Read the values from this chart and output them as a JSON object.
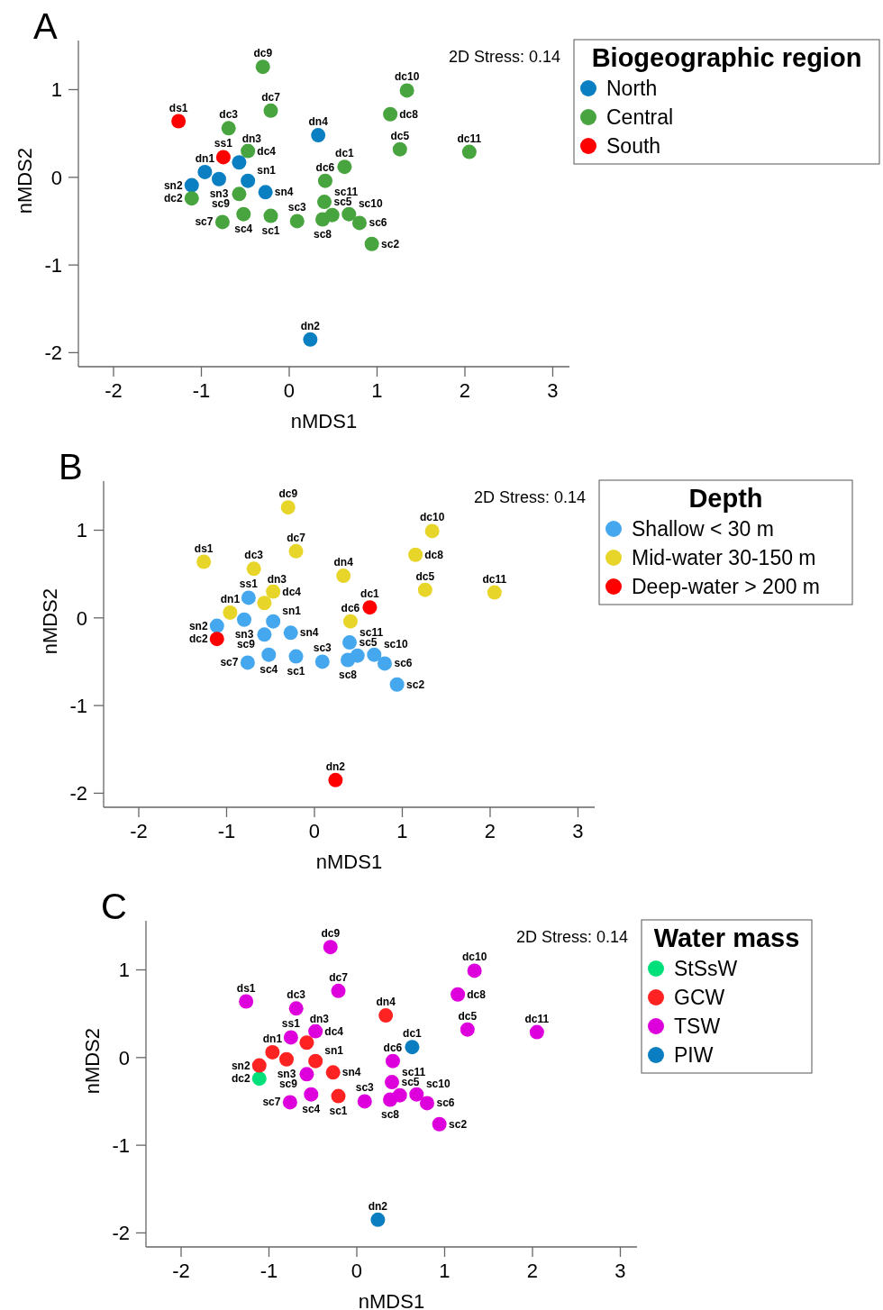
{
  "chart_data": [
    {
      "type": "scatter",
      "title": "A",
      "xlabel": "nMDS1",
      "ylabel": "nMDS2",
      "legend_title": "Biogeographic region",
      "legend": "right",
      "marker": "circle",
      "xlim": [
        -2.4,
        3.19
      ],
      "ylim": [
        -2.16,
        1.56
      ],
      "xticks": [
        -2,
        -1,
        0,
        1,
        2,
        3
      ],
      "yticks": [
        -2,
        -1,
        0,
        1
      ],
      "series": [
        {
          "name": "North",
          "color": "#0a7fc2",
          "x": [
            -0.96,
            0.24,
            -0.57,
            0.33,
            -0.47,
            -1.11,
            -0.8,
            -0.27
          ],
          "values": [
            0.06,
            -1.85,
            0.17,
            0.48,
            -0.04,
            -0.09,
            -0.02,
            -0.17
          ]
        },
        {
          "name": "Central",
          "color": "#47a43e",
          "x": [
            0.63,
            -1.11,
            -0.69,
            -0.47,
            1.26,
            0.41,
            -0.21,
            1.15,
            -0.3,
            1.34,
            2.05,
            -0.21,
            0.94,
            0.09,
            -0.52,
            0.4,
            0.8,
            -0.76,
            0.38,
            -0.57,
            0.68,
            0.49
          ],
          "values": [
            0.12,
            -0.24,
            0.56,
            0.3,
            0.32,
            -0.04,
            0.76,
            0.72,
            1.26,
            0.99,
            0.29,
            -0.44,
            -0.76,
            -0.5,
            -0.42,
            -0.28,
            -0.52,
            -0.51,
            -0.48,
            -0.19,
            -0.42,
            -0.43
          ]
        },
        {
          "name": "South",
          "color": "#ff0000",
          "x": [
            -1.26,
            -0.75
          ],
          "values": [
            0.64,
            0.23
          ]
        }
      ],
      "annotations": [
        "2D Stress: 0.14",
        {
          "text": "ds1",
          "x": -1.26,
          "y": 0.64
        },
        {
          "text": "ss1",
          "x": -0.75,
          "y": 0.23
        },
        {
          "text": "dn1",
          "x": -0.96,
          "y": 0.06
        },
        {
          "text": "dn2",
          "x": 0.24,
          "y": -1.85
        },
        {
          "text": "dn3",
          "x": -0.57,
          "y": 0.17
        },
        {
          "text": "dn4",
          "x": 0.33,
          "y": 0.48
        },
        {
          "text": "sn1",
          "x": -0.47,
          "y": -0.04
        },
        {
          "text": "sn2",
          "x": -1.11,
          "y": -0.09
        },
        {
          "text": "sn3",
          "x": -0.8,
          "y": -0.02
        },
        {
          "text": "sn4",
          "x": -0.27,
          "y": -0.17
        },
        {
          "text": "dc1",
          "x": 0.63,
          "y": 0.12
        },
        {
          "text": "dc2",
          "x": -1.11,
          "y": -0.24
        },
        {
          "text": "dc3",
          "x": -0.69,
          "y": 0.56
        },
        {
          "text": "dc4",
          "x": -0.47,
          "y": 0.3
        },
        {
          "text": "dc5",
          "x": 1.26,
          "y": 0.32
        },
        {
          "text": "dc6",
          "x": 0.41,
          "y": -0.04
        },
        {
          "text": "dc7",
          "x": -0.21,
          "y": 0.76
        },
        {
          "text": "dc8",
          "x": 1.15,
          "y": 0.72
        },
        {
          "text": "dc9",
          "x": -0.3,
          "y": 1.26
        },
        {
          "text": "dc10",
          "x": 1.34,
          "y": 0.99
        },
        {
          "text": "dc11",
          "x": 2.05,
          "y": 0.29
        },
        {
          "text": "sc1",
          "x": -0.21,
          "y": -0.44
        },
        {
          "text": "sc2",
          "x": 0.94,
          "y": -0.76
        },
        {
          "text": "sc3",
          "x": 0.09,
          "y": -0.5
        },
        {
          "text": "sc4",
          "x": -0.52,
          "y": -0.42
        },
        {
          "text": "sc5",
          "x": 0.4,
          "y": -0.28
        },
        {
          "text": "sc6",
          "x": 0.8,
          "y": -0.52
        },
        {
          "text": "sc7",
          "x": -0.76,
          "y": -0.51
        },
        {
          "text": "sc8",
          "x": 0.38,
          "y": -0.48
        },
        {
          "text": "sc9",
          "x": -0.57,
          "y": -0.19
        },
        {
          "text": "sc10",
          "x": 0.68,
          "y": -0.42
        },
        {
          "text": "sc11",
          "x": 0.49,
          "y": -0.43
        }
      ]
    },
    {
      "type": "scatter",
      "title": "B",
      "xlabel": "nMDS1",
      "ylabel": "nMDS2",
      "legend_title": "Depth",
      "legend": "right",
      "marker": "circle",
      "xlim": [
        -2.4,
        3.19
      ],
      "ylim": [
        -2.16,
        1.56
      ],
      "xticks": [
        -2,
        -1,
        0,
        1,
        2,
        3
      ],
      "yticks": [
        -2,
        -1,
        0,
        1
      ],
      "series": [
        {
          "name": "Shallow < 30 m",
          "color": "#45a8ee",
          "x": [
            -0.75,
            -0.47,
            -1.11,
            -0.8,
            -0.27,
            -0.21,
            0.94,
            0.09,
            -0.52,
            0.4,
            0.8,
            -0.76,
            0.38,
            -0.57,
            0.68,
            0.49
          ],
          "values": [
            0.23,
            -0.04,
            -0.09,
            -0.02,
            -0.17,
            -0.44,
            -0.76,
            -0.5,
            -0.42,
            -0.28,
            -0.52,
            -0.51,
            -0.48,
            -0.19,
            -0.42,
            -0.43
          ]
        },
        {
          "name": "Mid-water 30-150 m",
          "color": "#e8d52a",
          "x": [
            -1.26,
            -0.96,
            -0.57,
            0.33,
            -0.69,
            -0.47,
            1.26,
            0.41,
            -0.21,
            1.15,
            -0.3,
            1.34,
            2.05
          ],
          "values": [
            0.64,
            0.06,
            0.17,
            0.48,
            0.56,
            0.3,
            0.32,
            -0.04,
            0.76,
            0.72,
            1.26,
            0.99,
            0.29
          ]
        },
        {
          "name": "Deep-water > 200 m",
          "color": "#ff0000",
          "x": [
            0.63,
            -1.11,
            0.24
          ],
          "values": [
            0.12,
            -0.24,
            -1.85
          ]
        }
      ],
      "annotations": [
        "2D Stress: 0.14",
        {
          "text": "ds1",
          "x": -1.26,
          "y": 0.64
        },
        {
          "text": "ss1",
          "x": -0.75,
          "y": 0.23
        },
        {
          "text": "dn1",
          "x": -0.96,
          "y": 0.06
        },
        {
          "text": "dn2",
          "x": 0.24,
          "y": -1.85
        },
        {
          "text": "dn3",
          "x": -0.57,
          "y": 0.17
        },
        {
          "text": "dn4",
          "x": 0.33,
          "y": 0.48
        },
        {
          "text": "sn1",
          "x": -0.47,
          "y": -0.04
        },
        {
          "text": "sn2",
          "x": -1.11,
          "y": -0.09
        },
        {
          "text": "sn3",
          "x": -0.8,
          "y": -0.02
        },
        {
          "text": "sn4",
          "x": -0.27,
          "y": -0.17
        },
        {
          "text": "dc1",
          "x": 0.63,
          "y": 0.12
        },
        {
          "text": "dc2",
          "x": -1.11,
          "y": -0.24
        },
        {
          "text": "dc3",
          "x": -0.69,
          "y": 0.56
        },
        {
          "text": "dc4",
          "x": -0.47,
          "y": 0.3
        },
        {
          "text": "dc5",
          "x": 1.26,
          "y": 0.32
        },
        {
          "text": "dc6",
          "x": 0.41,
          "y": -0.04
        },
        {
          "text": "dc7",
          "x": -0.21,
          "y": 0.76
        },
        {
          "text": "dc8",
          "x": 1.15,
          "y": 0.72
        },
        {
          "text": "dc9",
          "x": -0.3,
          "y": 1.26
        },
        {
          "text": "dc10",
          "x": 1.34,
          "y": 0.99
        },
        {
          "text": "dc11",
          "x": 2.05,
          "y": 0.29
        },
        {
          "text": "sc1",
          "x": -0.21,
          "y": -0.44
        },
        {
          "text": "sc2",
          "x": 0.94,
          "y": -0.76
        },
        {
          "text": "sc3",
          "x": 0.09,
          "y": -0.5
        },
        {
          "text": "sc4",
          "x": -0.52,
          "y": -0.42
        },
        {
          "text": "sc5",
          "x": 0.4,
          "y": -0.28
        },
        {
          "text": "sc6",
          "x": 0.8,
          "y": -0.52
        },
        {
          "text": "sc7",
          "x": -0.76,
          "y": -0.51
        },
        {
          "text": "sc8",
          "x": 0.38,
          "y": -0.48
        },
        {
          "text": "sc9",
          "x": -0.57,
          "y": -0.19
        },
        {
          "text": "sc10",
          "x": 0.68,
          "y": -0.42
        },
        {
          "text": "sc11",
          "x": 0.49,
          "y": -0.43
        }
      ]
    },
    {
      "type": "scatter",
      "title": "C",
      "xlabel": "nMDS1",
      "ylabel": "nMDS2",
      "legend_title": "Water mass",
      "legend": "right",
      "marker": "circle",
      "xlim": [
        -2.4,
        3.19
      ],
      "ylim": [
        -2.16,
        1.56
      ],
      "xticks": [
        -2,
        -1,
        0,
        1,
        2,
        3
      ],
      "yticks": [
        -2,
        -1,
        0,
        1
      ],
      "series": [
        {
          "name": "StSsW",
          "color": "#00e07a",
          "x": [
            -1.11
          ],
          "values": [
            -0.24
          ]
        },
        {
          "name": "GCW",
          "color": "#ff2222",
          "x": [
            -0.96,
            -0.57,
            0.33,
            -0.47,
            -1.11,
            -0.8,
            -0.27,
            -0.21
          ],
          "values": [
            0.06,
            0.17,
            0.48,
            -0.04,
            -0.09,
            -0.02,
            -0.17,
            -0.44
          ]
        },
        {
          "name": "TSW",
          "color": "#dd00dd",
          "x": [
            -1.26,
            -0.75,
            -0.69,
            -0.47,
            1.26,
            0.41,
            -0.21,
            1.15,
            -0.3,
            1.34,
            2.05,
            0.94,
            0.09,
            -0.52,
            0.4,
            0.8,
            -0.76,
            0.38,
            -0.57,
            0.68,
            0.49
          ],
          "values": [
            0.64,
            0.23,
            0.56,
            0.3,
            0.32,
            -0.04,
            0.76,
            0.72,
            1.26,
            0.99,
            0.29,
            -0.76,
            -0.5,
            -0.42,
            -0.28,
            -0.52,
            -0.51,
            -0.48,
            -0.19,
            -0.42,
            -0.43
          ]
        },
        {
          "name": "PIW",
          "color": "#0a7ec0",
          "x": [
            0.63,
            0.24
          ],
          "values": [
            0.12,
            -1.85
          ]
        }
      ],
      "annotations": [
        "2D Stress: 0.14",
        {
          "text": "ds1",
          "x": -1.26,
          "y": 0.64
        },
        {
          "text": "ss1",
          "x": -0.75,
          "y": 0.23
        },
        {
          "text": "dn1",
          "x": -0.96,
          "y": 0.06
        },
        {
          "text": "dn2",
          "x": 0.24,
          "y": -1.85
        },
        {
          "text": "dn3",
          "x": -0.57,
          "y": 0.17
        },
        {
          "text": "dn4",
          "x": 0.33,
          "y": 0.48
        },
        {
          "text": "sn1",
          "x": -0.47,
          "y": -0.04
        },
        {
          "text": "sn2",
          "x": -1.11,
          "y": -0.09
        },
        {
          "text": "sn3",
          "x": -0.8,
          "y": -0.02
        },
        {
          "text": "sn4",
          "x": -0.27,
          "y": -0.17
        },
        {
          "text": "dc1",
          "x": 0.63,
          "y": 0.12
        },
        {
          "text": "dc2",
          "x": -1.11,
          "y": -0.24
        },
        {
          "text": "dc3",
          "x": -0.69,
          "y": 0.56
        },
        {
          "text": "dc4",
          "x": -0.47,
          "y": 0.3
        },
        {
          "text": "dc5",
          "x": 1.26,
          "y": 0.32
        },
        {
          "text": "dc6",
          "x": 0.41,
          "y": -0.04
        },
        {
          "text": "dc7",
          "x": -0.21,
          "y": 0.76
        },
        {
          "text": "dc8",
          "x": 1.15,
          "y": 0.72
        },
        {
          "text": "dc9",
          "x": -0.3,
          "y": 1.26
        },
        {
          "text": "dc10",
          "x": 1.34,
          "y": 0.99
        },
        {
          "text": "dc11",
          "x": 2.05,
          "y": 0.29
        },
        {
          "text": "sc1",
          "x": -0.21,
          "y": -0.44
        },
        {
          "text": "sc2",
          "x": 0.94,
          "y": -0.76
        },
        {
          "text": "sc3",
          "x": 0.09,
          "y": -0.5
        },
        {
          "text": "sc4",
          "x": -0.52,
          "y": -0.42
        },
        {
          "text": "sc5",
          "x": 0.4,
          "y": -0.28
        },
        {
          "text": "sc6",
          "x": 0.8,
          "y": -0.52
        },
        {
          "text": "sc7",
          "x": -0.76,
          "y": -0.51
        },
        {
          "text": "sc8",
          "x": 0.38,
          "y": -0.48
        },
        {
          "text": "sc9",
          "x": -0.57,
          "y": -0.19
        },
        {
          "text": "sc10",
          "x": 0.68,
          "y": -0.42
        },
        {
          "text": "sc11",
          "x": 0.49,
          "y": -0.43
        }
      ]
    }
  ]
}
